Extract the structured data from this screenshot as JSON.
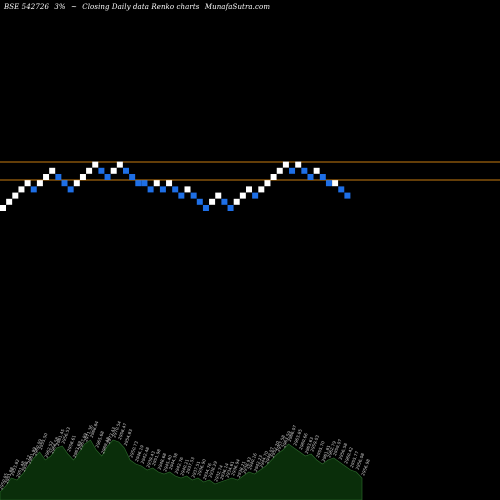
{
  "header": {
    "symbol": "BSE 542726",
    "change": "3%",
    "arrow": "~",
    "chart_label": "Closing Daily data  Renko  charts",
    "site": "MunafaSutra.com"
  },
  "colors": {
    "background": "#000000",
    "up_brick": "#ffffff",
    "down_brick": "#1e6fe6",
    "level_line": "#c87d10",
    "volume_fill": "#0a2e0a",
    "volume_stroke": "#2e6e2e",
    "volume_label": "#d0d0d0"
  },
  "chart_data": {
    "type": "renko",
    "bricks": [
      {
        "step": 0,
        "level": 0,
        "dir": "up"
      },
      {
        "step": 1,
        "level": 1,
        "dir": "up"
      },
      {
        "step": 2,
        "level": 2,
        "dir": "up"
      },
      {
        "step": 3,
        "level": 3,
        "dir": "up"
      },
      {
        "step": 4,
        "level": 4,
        "dir": "up"
      },
      {
        "step": 5,
        "level": 3,
        "dir": "down"
      },
      {
        "step": 6,
        "level": 4,
        "dir": "up"
      },
      {
        "step": 7,
        "level": 5,
        "dir": "up"
      },
      {
        "step": 8,
        "level": 6,
        "dir": "up"
      },
      {
        "step": 9,
        "level": 5,
        "dir": "down"
      },
      {
        "step": 10,
        "level": 4,
        "dir": "down"
      },
      {
        "step": 11,
        "level": 3,
        "dir": "down"
      },
      {
        "step": 12,
        "level": 4,
        "dir": "up"
      },
      {
        "step": 13,
        "level": 5,
        "dir": "up"
      },
      {
        "step": 14,
        "level": 6,
        "dir": "up"
      },
      {
        "step": 15,
        "level": 7,
        "dir": "up"
      },
      {
        "step": 16,
        "level": 6,
        "dir": "down"
      },
      {
        "step": 17,
        "level": 5,
        "dir": "down"
      },
      {
        "step": 18,
        "level": 6,
        "dir": "up"
      },
      {
        "step": 19,
        "level": 7,
        "dir": "up"
      },
      {
        "step": 20,
        "level": 6,
        "dir": "down"
      },
      {
        "step": 21,
        "level": 5,
        "dir": "down"
      },
      {
        "step": 22,
        "level": 4,
        "dir": "down"
      },
      {
        "step": 23,
        "level": 4,
        "dir": "down"
      },
      {
        "step": 24,
        "level": 3,
        "dir": "down"
      },
      {
        "step": 25,
        "level": 4,
        "dir": "up"
      },
      {
        "step": 26,
        "level": 3,
        "dir": "down"
      },
      {
        "step": 27,
        "level": 4,
        "dir": "up"
      },
      {
        "step": 28,
        "level": 3,
        "dir": "down"
      },
      {
        "step": 29,
        "level": 2,
        "dir": "down"
      },
      {
        "step": 30,
        "level": 3,
        "dir": "up"
      },
      {
        "step": 31,
        "level": 2,
        "dir": "down"
      },
      {
        "step": 32,
        "level": 1,
        "dir": "down"
      },
      {
        "step": 33,
        "level": 0,
        "dir": "down"
      },
      {
        "step": 34,
        "level": 1,
        "dir": "up"
      },
      {
        "step": 35,
        "level": 2,
        "dir": "up"
      },
      {
        "step": 36,
        "level": 1,
        "dir": "down"
      },
      {
        "step": 37,
        "level": 0,
        "dir": "down"
      },
      {
        "step": 38,
        "level": 1,
        "dir": "up"
      },
      {
        "step": 39,
        "level": 2,
        "dir": "up"
      },
      {
        "step": 40,
        "level": 3,
        "dir": "up"
      },
      {
        "step": 41,
        "level": 2,
        "dir": "down"
      },
      {
        "step": 42,
        "level": 3,
        "dir": "up"
      },
      {
        "step": 43,
        "level": 4,
        "dir": "up"
      },
      {
        "step": 44,
        "level": 5,
        "dir": "up"
      },
      {
        "step": 45,
        "level": 6,
        "dir": "up"
      },
      {
        "step": 46,
        "level": 7,
        "dir": "up"
      },
      {
        "step": 47,
        "level": 6,
        "dir": "down"
      },
      {
        "step": 48,
        "level": 7,
        "dir": "up"
      },
      {
        "step": 49,
        "level": 6,
        "dir": "down"
      },
      {
        "step": 50,
        "level": 5,
        "dir": "down"
      },
      {
        "step": 51,
        "level": 6,
        "dir": "up"
      },
      {
        "step": 52,
        "level": 5,
        "dir": "down"
      },
      {
        "step": 53,
        "level": 4,
        "dir": "down"
      },
      {
        "step": 54,
        "level": 4,
        "dir": "up"
      },
      {
        "step": 55,
        "level": 3,
        "dir": "down"
      },
      {
        "step": 56,
        "level": 2,
        "dir": "down"
      }
    ],
    "level_lines": [
      "upper",
      "lower"
    ],
    "volume_labels": [
      "2950.85",
      "2951.88",
      "2953.82",
      "2951.48",
      "2956.12",
      "2961.99",
      "2960.09",
      "2955.50",
      "2962.52",
      "2966.58",
      "2961.45",
      "2956.53",
      "2958.61",
      "2963.69",
      "2967.89",
      "2971.36",
      "2968.84",
      "2965.68",
      "2969.48",
      "2973.43",
      "2970.54",
      "2958.47",
      "2954.83",
      "2950.73",
      "2946.19",
      "2942.48",
      "2939.43",
      "2951.98",
      "2948.68",
      "2945.40",
      "2944.38",
      "2942.76",
      "2940.21",
      "2937.53",
      "2937.51",
      "2936.90",
      "2934.76",
      "2938.29",
      "2932.74",
      "2936.14",
      "2934.61",
      "2936.94",
      "2938.21",
      "2938.93",
      "2940.16",
      "2942.23",
      "2944.70",
      "2949.07",
      "2952.20",
      "2957.58",
      "2963.59",
      "2966.07",
      "2963.85",
      "2960.66",
      "2963.63",
      "2959.03",
      "2955.70",
      "2961.81",
      "2962.79",
      "2959.07",
      "2956.58",
      "2960.42",
      "2955.77",
      "2956.08",
      "2956.98"
    ],
    "volume_profile": [
      8,
      14,
      22,
      20,
      26,
      34,
      42,
      48,
      40,
      44,
      52,
      54,
      46,
      40,
      48,
      56,
      60,
      50,
      44,
      54,
      60,
      58,
      52,
      40,
      36,
      34,
      30,
      32,
      28,
      26,
      28,
      24,
      22,
      24,
      20,
      22,
      18,
      20,
      16,
      18,
      20,
      22,
      20,
      24,
      28,
      26,
      30,
      34,
      40,
      46,
      50,
      56,
      52,
      48,
      44,
      46,
      40,
      36,
      40,
      42,
      38,
      34,
      30,
      28,
      22
    ]
  }
}
